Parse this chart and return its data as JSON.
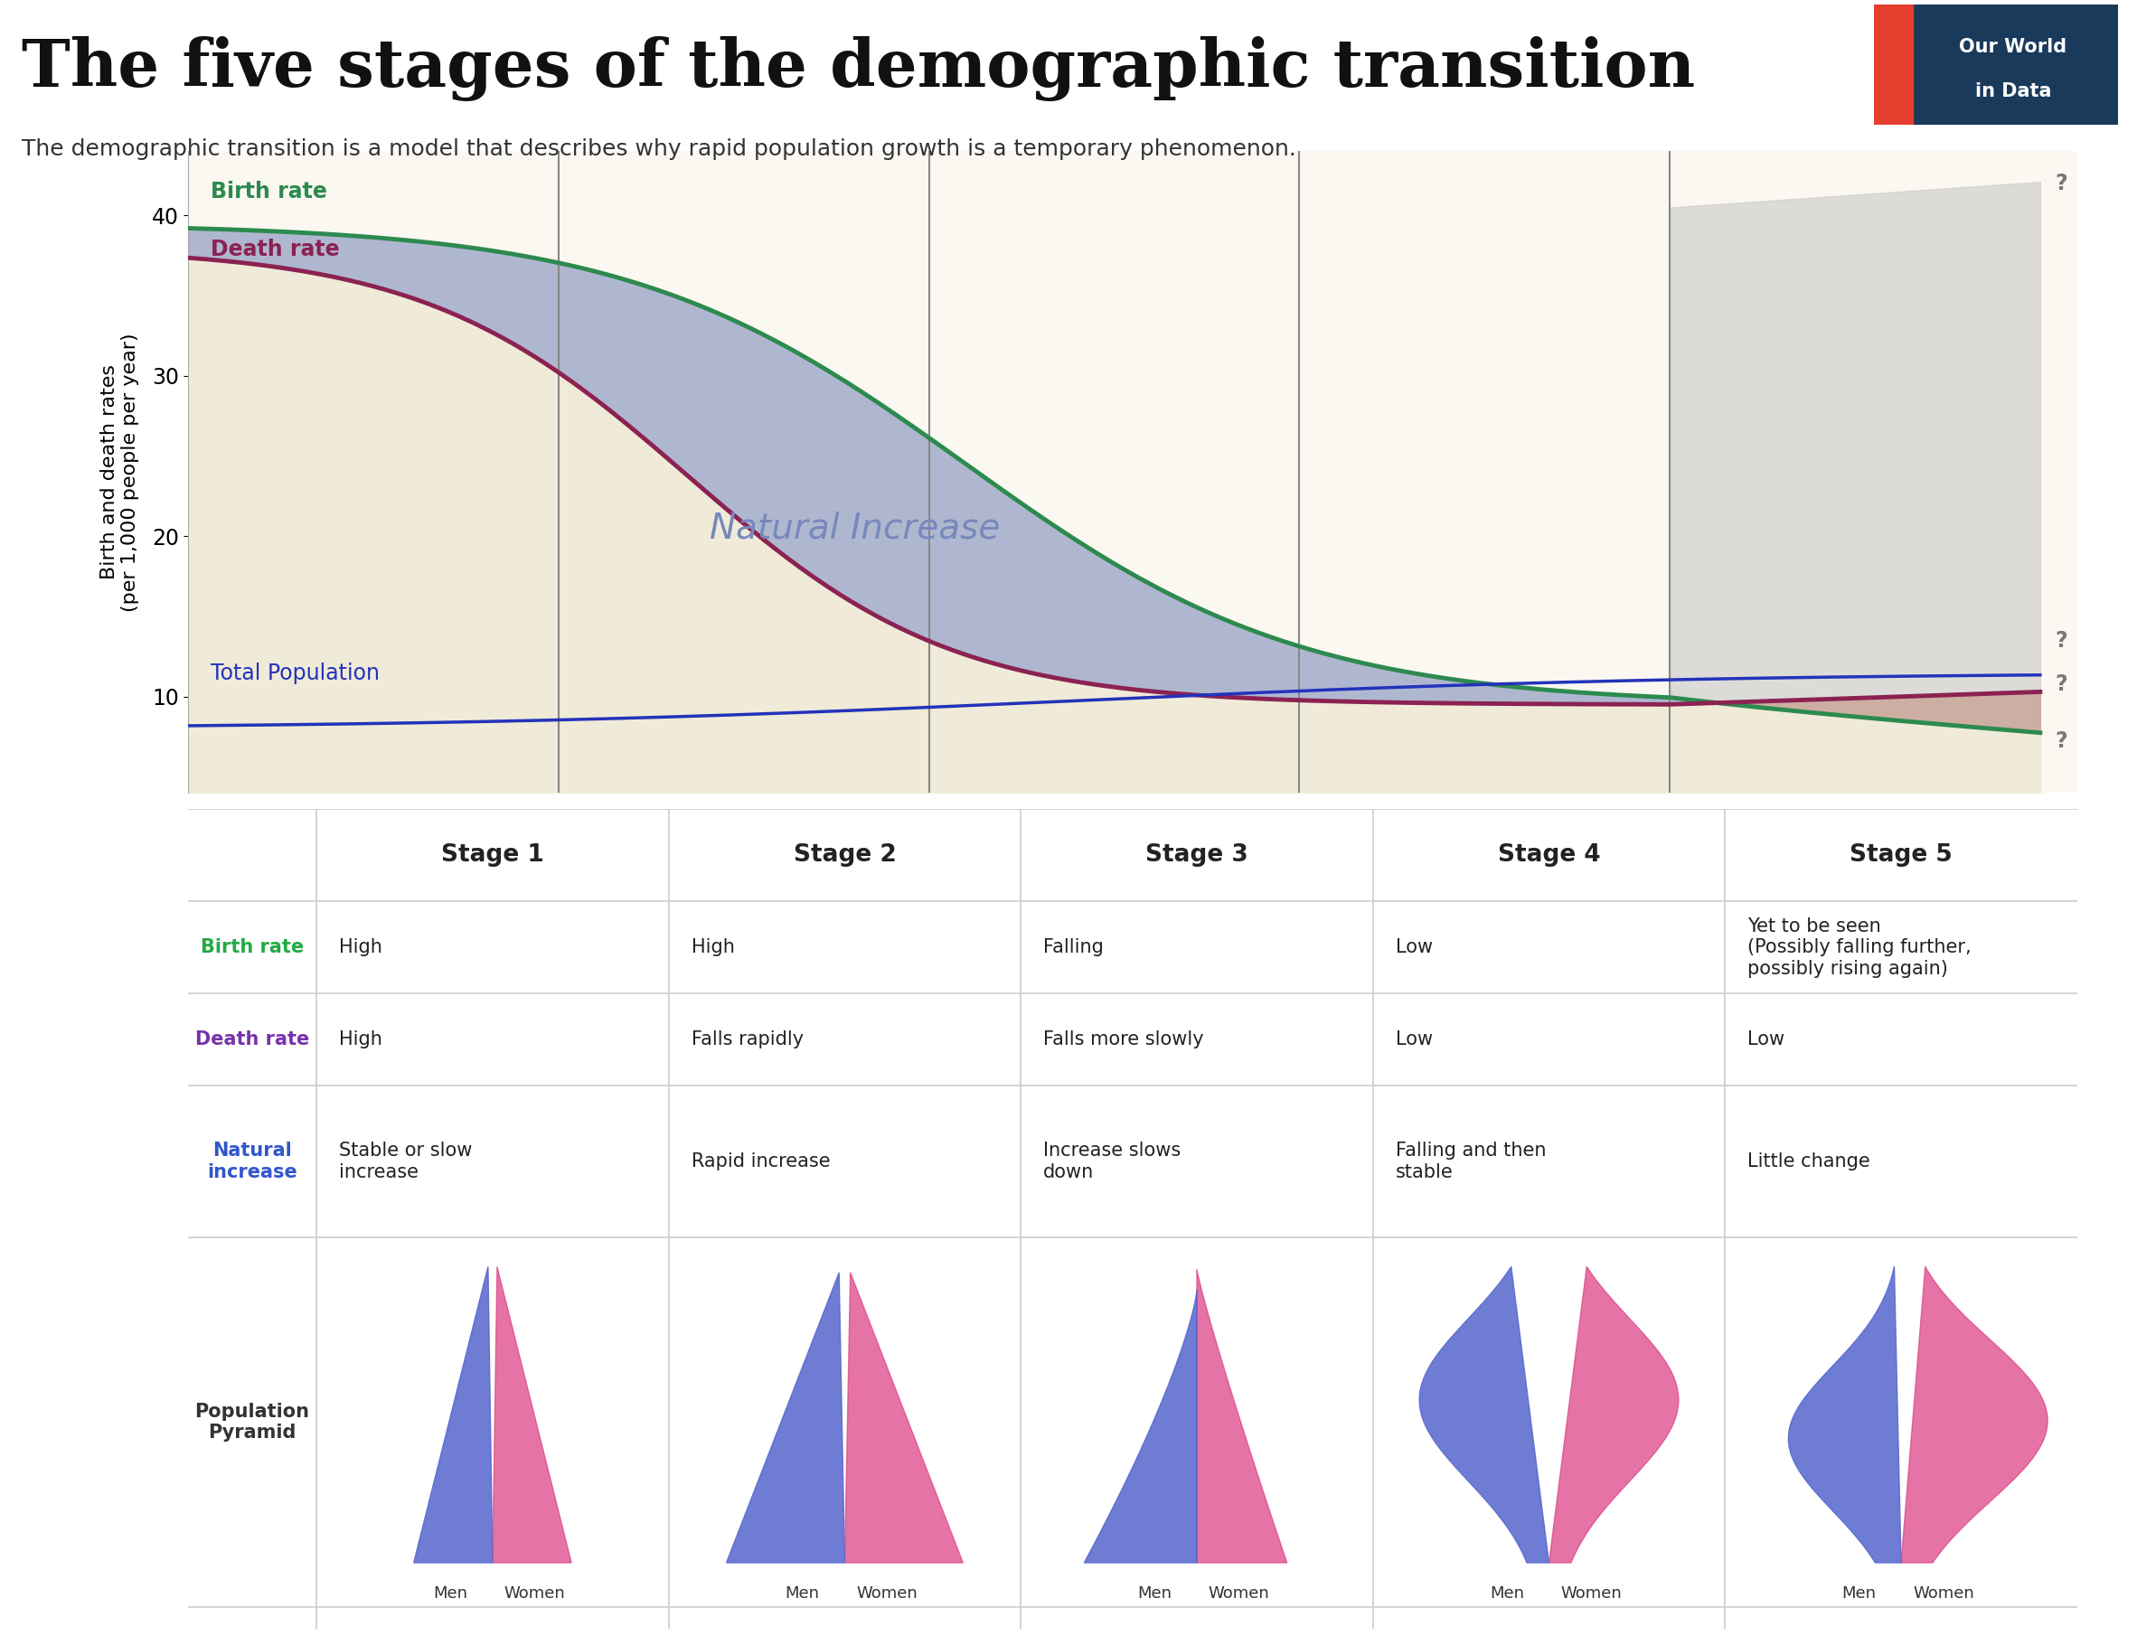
{
  "title": "The five stages of the demographic transition",
  "subtitle": "The demographic transition is a model that describes why rapid population growth is a temporary phenomenon.",
  "logo_text1": "Our World",
  "logo_text2": "in Data",
  "logo_bg": "#1a3a5c",
  "logo_highlight": "#e63e2f",
  "bg_color": "#ffffff",
  "chart_bg": "#faf8f0",
  "birth_color": "#2d8a4e",
  "death_color": "#8b2252",
  "natural_increase_fill": "#8899cc",
  "total_pop_color": "#2233bb",
  "stage5_fill_top": "#cccccc",
  "stage5_fill_bottom": "#c8a090",
  "birth_rate_green": "#22aa44",
  "death_rate_purple": "#7733aa",
  "natural_inc_blue": "#3355cc",
  "men_color": "#5566cc",
  "women_color": "#dd4488",
  "stages": [
    "Stage 1",
    "Stage 2",
    "Stage 3",
    "Stage 4",
    "Stage 5"
  ],
  "birth_rate_labels": [
    "High",
    "High",
    "Falling",
    "Low",
    "Yet to be seen\n(Possibly falling further,\npossibly rising again)"
  ],
  "death_rate_labels": [
    "High",
    "Falls rapidly",
    "Falls more slowly",
    "Low",
    "Low"
  ],
  "natural_increase_labels": [
    "Stable or slow\nincrease",
    "Rapid increase",
    "Increase slows\ndown",
    "Falling and then\nstable",
    "Little change"
  ],
  "ylabel": "Birth and death rates\n(per 1,000 people per year)",
  "yticks": [
    10,
    20,
    30,
    40
  ],
  "ylim": [
    4,
    44
  ]
}
